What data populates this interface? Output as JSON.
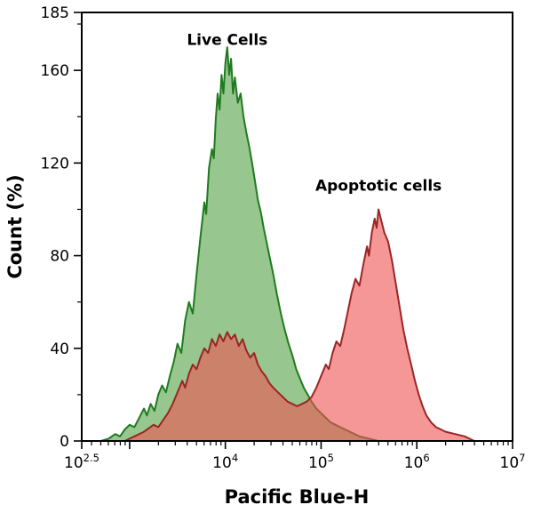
{
  "chart_data": {
    "type": "area",
    "title": "",
    "xlabel": "Pacific Blue-H",
    "ylabel": "Count (%)",
    "x_scale": "log10",
    "xlim_log": [
      2.5,
      7
    ],
    "ylim": [
      0,
      185
    ],
    "grid": false,
    "frame_color": "#000000",
    "x_major_ticks": [
      {
        "log": 2.5,
        "exp": "2.5"
      },
      {
        "log": 3.0,
        "exp": ""
      },
      {
        "log": 4.0,
        "exp": "4"
      },
      {
        "log": 5.0,
        "exp": "5"
      },
      {
        "log": 6.0,
        "exp": "6"
      },
      {
        "log": 7.0,
        "exp": "7"
      }
    ],
    "x_minor_ticks_log": [
      2.602,
      2.699,
      2.778,
      2.845,
      2.903,
      2.954,
      3.301,
      3.477,
      3.602,
      3.699,
      3.778,
      3.845,
      3.903,
      3.954,
      4.301,
      4.477,
      4.602,
      4.699,
      4.778,
      4.845,
      4.903,
      4.954,
      5.301,
      5.477,
      5.602,
      5.699,
      5.778,
      5.845,
      5.903,
      5.954,
      6.301,
      6.477,
      6.602,
      6.699,
      6.778,
      6.845,
      6.903,
      6.954
    ],
    "y_major_ticks": [
      0,
      40,
      80,
      120,
      160,
      185
    ],
    "y_minor_ticks": [
      20,
      60,
      100,
      140,
      180
    ],
    "annotations": [
      {
        "text": "Live Cells",
        "color": "#1e7a1e",
        "log_x": 4.02,
        "y": 171
      },
      {
        "text": "Apoptotic cells",
        "color": "#d22b2b",
        "log_x": 5.6,
        "y": 108
      }
    ],
    "series": [
      {
        "name": "Live Cells",
        "stroke": "#1f7a1f",
        "fill": "rgba(96,169,82,0.65)",
        "points": [
          [
            2.7,
            0
          ],
          [
            2.78,
            1
          ],
          [
            2.85,
            3
          ],
          [
            2.9,
            2
          ],
          [
            2.95,
            5
          ],
          [
            3.0,
            7
          ],
          [
            3.05,
            6
          ],
          [
            3.1,
            10
          ],
          [
            3.15,
            14
          ],
          [
            3.18,
            11
          ],
          [
            3.22,
            16
          ],
          [
            3.26,
            13
          ],
          [
            3.3,
            20
          ],
          [
            3.34,
            24
          ],
          [
            3.38,
            21
          ],
          [
            3.42,
            28
          ],
          [
            3.46,
            34
          ],
          [
            3.5,
            42
          ],
          [
            3.54,
            38
          ],
          [
            3.58,
            52
          ],
          [
            3.62,
            60
          ],
          [
            3.66,
            55
          ],
          [
            3.7,
            72
          ],
          [
            3.74,
            88
          ],
          [
            3.78,
            103
          ],
          [
            3.8,
            98
          ],
          [
            3.83,
            118
          ],
          [
            3.86,
            126
          ],
          [
            3.88,
            122
          ],
          [
            3.9,
            139
          ],
          [
            3.92,
            150
          ],
          [
            3.94,
            143
          ],
          [
            3.96,
            158
          ],
          [
            3.98,
            150
          ],
          [
            4.0,
            163
          ],
          [
            4.02,
            170
          ],
          [
            4.04,
            158
          ],
          [
            4.06,
            165
          ],
          [
            4.08,
            150
          ],
          [
            4.1,
            157
          ],
          [
            4.13,
            146
          ],
          [
            4.16,
            150
          ],
          [
            4.19,
            140
          ],
          [
            4.22,
            133
          ],
          [
            4.25,
            127
          ],
          [
            4.28,
            120
          ],
          [
            4.31,
            112
          ],
          [
            4.34,
            104
          ],
          [
            4.37,
            99
          ],
          [
            4.4,
            92
          ],
          [
            4.43,
            86
          ],
          [
            4.46,
            80
          ],
          [
            4.5,
            72
          ],
          [
            4.54,
            63
          ],
          [
            4.58,
            55
          ],
          [
            4.62,
            48
          ],
          [
            4.66,
            42
          ],
          [
            4.7,
            37
          ],
          [
            4.74,
            31
          ],
          [
            4.78,
            27
          ],
          [
            4.82,
            23
          ],
          [
            4.86,
            20
          ],
          [
            4.9,
            17
          ],
          [
            4.95,
            14
          ],
          [
            5.0,
            12
          ],
          [
            5.05,
            10
          ],
          [
            5.1,
            8
          ],
          [
            5.2,
            6
          ],
          [
            5.3,
            4
          ],
          [
            5.4,
            2
          ],
          [
            5.5,
            1
          ],
          [
            5.6,
            0
          ]
        ]
      },
      {
        "name": "Apoptotic cells",
        "stroke": "#9a2525",
        "fill": "rgba(240,82,82,0.6)",
        "points": [
          [
            2.95,
            0
          ],
          [
            3.05,
            2
          ],
          [
            3.15,
            4
          ],
          [
            3.25,
            7
          ],
          [
            3.3,
            6
          ],
          [
            3.35,
            9
          ],
          [
            3.4,
            12
          ],
          [
            3.45,
            16
          ],
          [
            3.5,
            21
          ],
          [
            3.55,
            26
          ],
          [
            3.58,
            23
          ],
          [
            3.62,
            29
          ],
          [
            3.66,
            33
          ],
          [
            3.7,
            31
          ],
          [
            3.74,
            36
          ],
          [
            3.78,
            40
          ],
          [
            3.82,
            38
          ],
          [
            3.86,
            44
          ],
          [
            3.9,
            41
          ],
          [
            3.94,
            46
          ],
          [
            3.98,
            43
          ],
          [
            4.02,
            47
          ],
          [
            4.06,
            44
          ],
          [
            4.1,
            46
          ],
          [
            4.14,
            41
          ],
          [
            4.18,
            44
          ],
          [
            4.22,
            39
          ],
          [
            4.26,
            36
          ],
          [
            4.3,
            38
          ],
          [
            4.34,
            33
          ],
          [
            4.38,
            30
          ],
          [
            4.42,
            28
          ],
          [
            4.46,
            25
          ],
          [
            4.5,
            23
          ],
          [
            4.55,
            21
          ],
          [
            4.6,
            19
          ],
          [
            4.65,
            17
          ],
          [
            4.7,
            16
          ],
          [
            4.75,
            15
          ],
          [
            4.8,
            16
          ],
          [
            4.85,
            17
          ],
          [
            4.9,
            19
          ],
          [
            4.95,
            23
          ],
          [
            5.0,
            28
          ],
          [
            5.05,
            33
          ],
          [
            5.08,
            31
          ],
          [
            5.12,
            38
          ],
          [
            5.16,
            43
          ],
          [
            5.2,
            41
          ],
          [
            5.24,
            48
          ],
          [
            5.28,
            56
          ],
          [
            5.32,
            64
          ],
          [
            5.36,
            70
          ],
          [
            5.4,
            67
          ],
          [
            5.44,
            76
          ],
          [
            5.48,
            84
          ],
          [
            5.5,
            80
          ],
          [
            5.53,
            90
          ],
          [
            5.56,
            96
          ],
          [
            5.58,
            92
          ],
          [
            5.6,
            100
          ],
          [
            5.63,
            95
          ],
          [
            5.66,
            90
          ],
          [
            5.7,
            86
          ],
          [
            5.74,
            78
          ],
          [
            5.78,
            68
          ],
          [
            5.82,
            58
          ],
          [
            5.86,
            48
          ],
          [
            5.9,
            40
          ],
          [
            5.94,
            33
          ],
          [
            5.98,
            26
          ],
          [
            6.02,
            20
          ],
          [
            6.06,
            15
          ],
          [
            6.1,
            11
          ],
          [
            6.15,
            8
          ],
          [
            6.2,
            6
          ],
          [
            6.3,
            4
          ],
          [
            6.4,
            3
          ],
          [
            6.5,
            2
          ],
          [
            6.55,
            1
          ],
          [
            6.6,
            0
          ]
        ]
      }
    ]
  }
}
